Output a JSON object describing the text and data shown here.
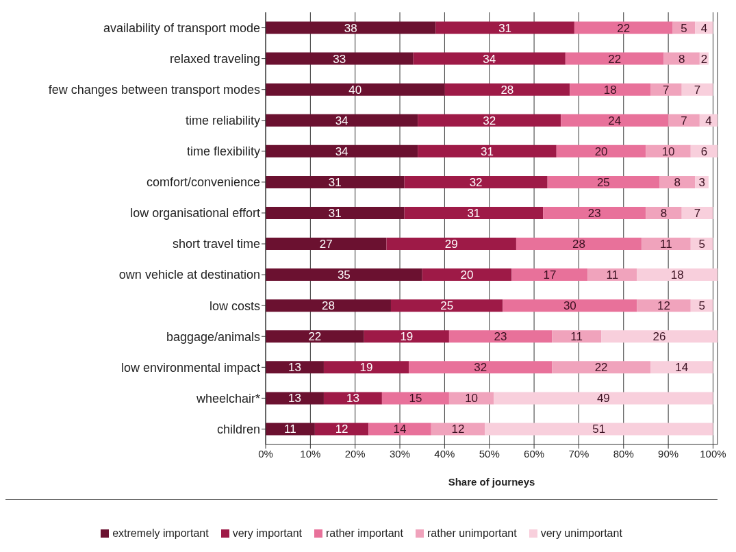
{
  "chart_data": {
    "type": "bar",
    "orientation": "horizontal",
    "stacked": true,
    "xlabel": "Share of journeys",
    "categories": [
      "availability of transport mode",
      "relaxed traveling",
      "few changes between transport modes",
      "time reliability",
      "time flexibility",
      "comfort/convenience",
      "low organisational effort",
      "short travel time",
      "own vehicle at destination",
      "low costs",
      "baggage/animals",
      "low environmental impact",
      "wheelchair*",
      "children"
    ],
    "series": [
      {
        "name": "extremely important",
        "color": "#6b1130",
        "values": [
          38,
          33,
          40,
          34,
          34,
          31,
          31,
          27,
          35,
          28,
          22,
          13,
          13,
          11
        ]
      },
      {
        "name": "very important",
        "color": "#9e1a47",
        "values": [
          31,
          34,
          28,
          32,
          31,
          32,
          31,
          29,
          20,
          25,
          19,
          19,
          13,
          12
        ]
      },
      {
        "name": "rather important",
        "color": "#e8719a",
        "values": [
          22,
          22,
          18,
          24,
          20,
          25,
          23,
          28,
          17,
          30,
          23,
          32,
          15,
          14
        ]
      },
      {
        "name": "rather unimportant",
        "color": "#f0a3bc",
        "values": [
          5,
          8,
          7,
          7,
          10,
          8,
          8,
          11,
          11,
          12,
          11,
          22,
          10,
          12
        ]
      },
      {
        "name": "very unimportant",
        "color": "#f8cfdc",
        "values": [
          4,
          2,
          7,
          4,
          6,
          3,
          7,
          5,
          18,
          5,
          26,
          14,
          49,
          51
        ]
      }
    ],
    "xlim": [
      0,
      101
    ],
    "xticks": [
      {
        "value": 0,
        "label": "0%"
      },
      {
        "value": 10,
        "label": "10%"
      },
      {
        "value": 20,
        "label": "20%"
      },
      {
        "value": 30,
        "label": "30%"
      },
      {
        "value": 40,
        "label": "40%"
      },
      {
        "value": 50,
        "label": "50%"
      },
      {
        "value": 60,
        "label": "60%"
      },
      {
        "value": 70,
        "label": "70%"
      },
      {
        "value": 80,
        "label": "80%"
      },
      {
        "value": 90,
        "label": "90%"
      },
      {
        "value": 100,
        "label": "100%"
      }
    ],
    "grid": "x",
    "legend": "bottom",
    "data_labels": true
  }
}
